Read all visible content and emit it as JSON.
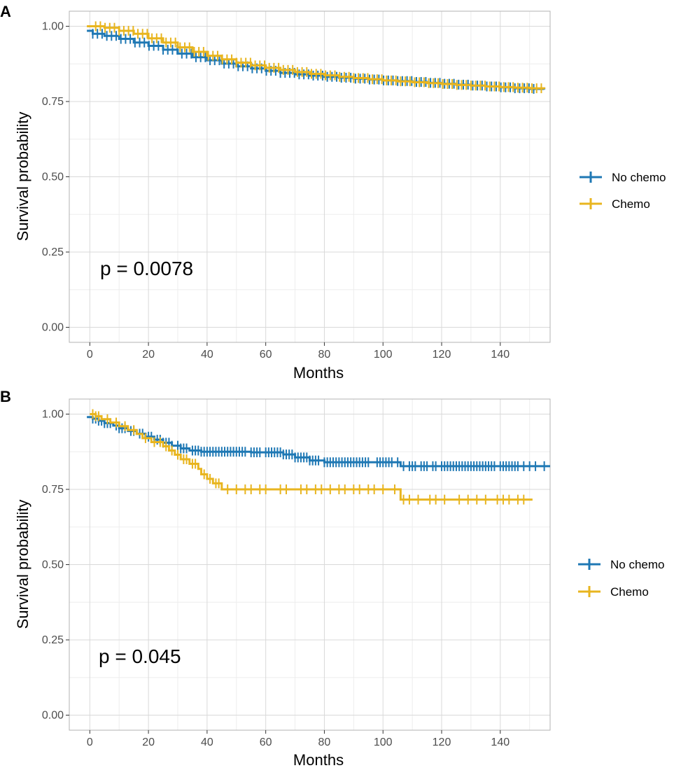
{
  "colors": {
    "no_chemo": "#1f78b4",
    "chemo": "#e8b51f",
    "grid_major": "#d9d9d9",
    "grid_minor": "#ededed",
    "border": "#b3b3b3"
  },
  "chart_data": [
    {
      "type": "line",
      "subtype": "kaplan-meier",
      "panel": "A",
      "xlabel": "Months",
      "ylabel": "Survival probability",
      "xlim": [
        -7,
        157
      ],
      "ylim": [
        -0.05,
        1.05
      ],
      "x_ticks": [
        0,
        20,
        40,
        60,
        80,
        100,
        120,
        140
      ],
      "x_tick_labels": [
        "0",
        "20",
        "40",
        "60",
        "80",
        "100",
        "120",
        "140"
      ],
      "y_ticks": [
        0,
        0.25,
        0.5,
        0.75,
        1.0
      ],
      "y_tick_labels": [
        "0.00",
        "0.25",
        "0.50",
        "0.75",
        "1.00"
      ],
      "annotation": "p = 0.0078",
      "legend": [
        "No chemo",
        "Chemo"
      ],
      "legend_position": "right",
      "series": [
        {
          "name": "No chemo",
          "color_key": "no_chemo",
          "x": [
            -1,
            0,
            1,
            5,
            10,
            15,
            20,
            25,
            30,
            35,
            40,
            45,
            50,
            55,
            60,
            65,
            70,
            75,
            80,
            85,
            90,
            95,
            100,
            105,
            110,
            115,
            120,
            125,
            130,
            135,
            140,
            145,
            150,
            155
          ],
          "y": [
            0.985,
            0.985,
            0.975,
            0.968,
            0.958,
            0.946,
            0.935,
            0.922,
            0.909,
            0.897,
            0.887,
            0.876,
            0.867,
            0.86,
            0.852,
            0.845,
            0.84,
            0.836,
            0.832,
            0.829,
            0.826,
            0.823,
            0.82,
            0.818,
            0.815,
            0.812,
            0.809,
            0.806,
            0.803,
            0.8,
            0.797,
            0.794,
            0.792,
            0.79
          ],
          "censor_range": [
            1,
            152
          ]
        },
        {
          "name": "Chemo",
          "color_key": "chemo",
          "x": [
            -1,
            0,
            2,
            5,
            10,
            15,
            20,
            25,
            30,
            35,
            40,
            45,
            50,
            55,
            60,
            65,
            70,
            75,
            80,
            85,
            90,
            95,
            100,
            105,
            110,
            115,
            120,
            125,
            130,
            135,
            140,
            145,
            150,
            155
          ],
          "y": [
            1.0,
            1.0,
            1.0,
            0.995,
            0.985,
            0.975,
            0.96,
            0.946,
            0.93,
            0.915,
            0.902,
            0.89,
            0.879,
            0.87,
            0.862,
            0.855,
            0.848,
            0.842,
            0.837,
            0.832,
            0.828,
            0.824,
            0.82,
            0.817,
            0.814,
            0.811,
            0.808,
            0.805,
            0.803,
            0.8,
            0.798,
            0.796,
            0.794,
            0.792
          ],
          "censor_range": [
            2,
            154
          ]
        }
      ]
    },
    {
      "type": "line",
      "subtype": "kaplan-meier",
      "panel": "B",
      "xlabel": "Months",
      "ylabel": "Survival probability",
      "xlim": [
        -7,
        157
      ],
      "ylim": [
        -0.05,
        1.05
      ],
      "x_ticks": [
        0,
        20,
        40,
        60,
        80,
        100,
        120,
        140
      ],
      "x_tick_labels": [
        "0",
        "20",
        "40",
        "60",
        "80",
        "100",
        "120",
        "140"
      ],
      "y_ticks": [
        0,
        0.25,
        0.5,
        0.75,
        1.0
      ],
      "y_tick_labels": [
        "0.00",
        "0.25",
        "0.50",
        "0.75",
        "1.00"
      ],
      "annotation": "p = 0.045",
      "legend": [
        "No chemo",
        "Chemo"
      ],
      "legend_position": "right",
      "series": [
        {
          "name": "No chemo",
          "color_key": "no_chemo",
          "x": [
            -1,
            0,
            1,
            3,
            5,
            8,
            10,
            13,
            16,
            19,
            22,
            25,
            28,
            31,
            34,
            38,
            45,
            55,
            66,
            70,
            75,
            80,
            92,
            100,
            106,
            120,
            140,
            157
          ],
          "y": [
            0.99,
            0.99,
            0.985,
            0.978,
            0.97,
            0.962,
            0.953,
            0.944,
            0.935,
            0.925,
            0.915,
            0.905,
            0.895,
            0.886,
            0.879,
            0.875,
            0.875,
            0.873,
            0.866,
            0.856,
            0.846,
            0.84,
            0.84,
            0.84,
            0.827,
            0.827,
            0.827,
            0.827
          ],
          "censor_x": [
            1,
            2,
            3,
            4,
            5,
            6,
            7,
            9,
            10,
            11,
            12,
            14,
            15,
            17,
            18,
            20,
            21,
            23,
            24,
            25,
            26,
            27,
            28,
            30,
            31,
            32,
            33,
            35,
            36,
            37,
            38,
            39,
            40,
            41,
            42,
            43,
            44,
            45,
            46,
            47,
            48,
            49,
            50,
            51,
            52,
            53,
            55,
            56,
            57,
            58,
            60,
            61,
            62,
            63,
            64,
            65,
            66,
            67,
            68,
            69,
            70,
            71,
            72,
            73,
            74,
            75,
            76,
            77,
            78,
            80,
            81,
            82,
            83,
            84,
            85,
            86,
            87,
            88,
            89,
            90,
            91,
            92,
            93,
            94,
            95,
            98,
            99,
            100,
            101,
            102,
            103,
            105,
            107,
            109,
            110,
            111,
            113,
            114,
            115,
            117,
            118,
            120,
            121,
            122,
            123,
            124,
            125,
            126,
            127,
            128,
            129,
            130,
            131,
            132,
            133,
            134,
            135,
            136,
            137,
            138,
            140,
            141,
            142,
            143,
            144,
            145,
            146,
            148,
            150,
            152,
            155
          ]
        },
        {
          "name": "Chemo",
          "color_key": "chemo",
          "x": [
            0,
            2,
            4,
            7,
            10,
            13,
            16,
            18,
            21,
            25,
            27,
            29,
            31,
            34,
            37,
            38,
            40,
            42,
            45,
            50,
            105,
            106,
            151
          ],
          "y": [
            1.0,
            0.993,
            0.983,
            0.972,
            0.96,
            0.947,
            0.934,
            0.92,
            0.907,
            0.893,
            0.879,
            0.865,
            0.85,
            0.835,
            0.818,
            0.8,
            0.785,
            0.77,
            0.75,
            0.75,
            0.75,
            0.716,
            0.716
          ],
          "censor_x": [
            1,
            2,
            3,
            6,
            9,
            12,
            15,
            19,
            22,
            24,
            26,
            28,
            30,
            32,
            33,
            35,
            36,
            39,
            41,
            43,
            44,
            47,
            50,
            53,
            55,
            58,
            60,
            65,
            67,
            72,
            74,
            77,
            79,
            82,
            85,
            87,
            90,
            92,
            95,
            97,
            100,
            104,
            107,
            109,
            112,
            116,
            118,
            121,
            126,
            129,
            132,
            135,
            139,
            141,
            143,
            146,
            148
          ]
        }
      ]
    }
  ]
}
